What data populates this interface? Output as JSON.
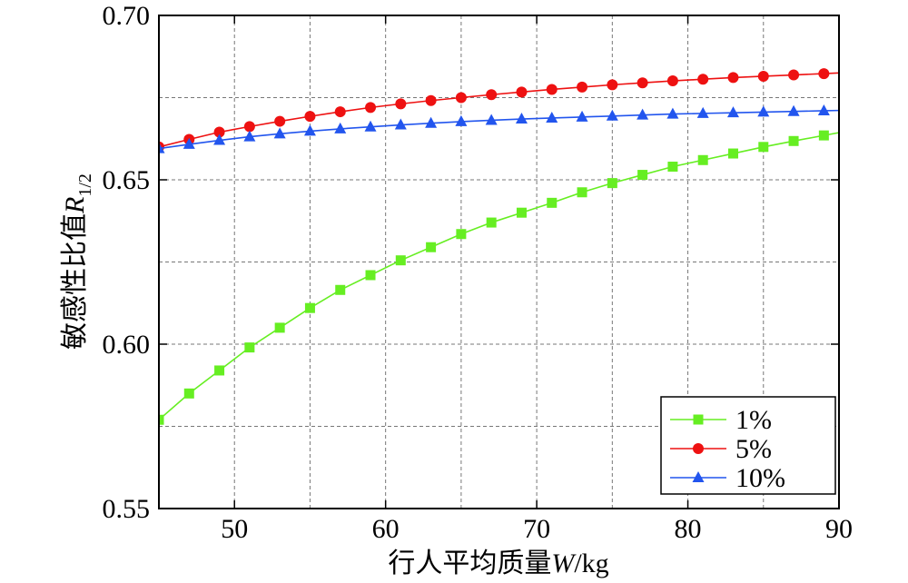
{
  "chart_data": {
    "type": "line",
    "xlabel": "行人平均质量",
    "xlabel_var": "W",
    "xlabel_unit": "/kg",
    "ylabel": "敏感性比值",
    "ylabel_var": "R",
    "ylabel_sub": "1/2",
    "xlim": [
      45,
      90
    ],
    "ylim": [
      0.55,
      0.7
    ],
    "xticks": [
      50,
      60,
      70,
      80,
      90
    ],
    "yticks": [
      0.55,
      0.6,
      0.65,
      0.7
    ],
    "ytick_labels": [
      "0.55",
      "0.60",
      "0.65",
      "0.70"
    ],
    "grid": true,
    "legend_position": "bottom-right",
    "x": [
      45,
      47,
      49,
      51,
      53,
      55,
      57,
      59,
      61,
      63,
      65,
      67,
      69,
      71,
      73,
      75,
      77,
      79,
      81,
      83,
      85,
      87,
      89
    ],
    "series": [
      {
        "name": "1%",
        "color": "#66ee22",
        "marker": "square",
        "values": [
          0.577,
          0.585,
          0.592,
          0.599,
          0.605,
          0.611,
          0.6165,
          0.621,
          0.6255,
          0.6295,
          0.6335,
          0.637,
          0.64,
          0.643,
          0.6462,
          0.649,
          0.6515,
          0.654,
          0.656,
          0.658,
          0.66,
          0.6618,
          0.6635
        ]
      },
      {
        "name": "5%",
        "color": "#ee1111",
        "marker": "circle",
        "values": [
          0.66,
          0.6623,
          0.6645,
          0.6662,
          0.6678,
          0.6693,
          0.6707,
          0.672,
          0.6731,
          0.6741,
          0.675,
          0.6759,
          0.6767,
          0.6775,
          0.6782,
          0.6789,
          0.6795,
          0.6801,
          0.6806,
          0.6811,
          0.6815,
          0.6819,
          0.6823
        ]
      },
      {
        "name": "10%",
        "color": "#2255ee",
        "marker": "triangle",
        "values": [
          0.6595,
          0.6608,
          0.662,
          0.6631,
          0.664,
          0.6648,
          0.6655,
          0.6661,
          0.6667,
          0.6672,
          0.6677,
          0.6681,
          0.6685,
          0.6688,
          0.6691,
          0.6694,
          0.6697,
          0.67,
          0.6702,
          0.6704,
          0.6706,
          0.6708,
          0.671
        ]
      }
    ]
  }
}
